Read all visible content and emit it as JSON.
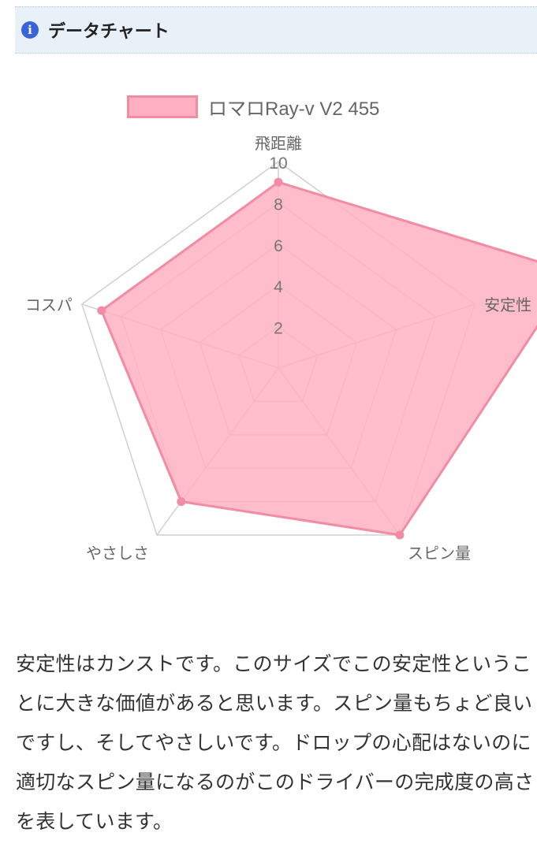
{
  "header": {
    "icon": "info-icon",
    "title": "データチャート"
  },
  "chart_data": {
    "type": "radar",
    "legend_position": "top",
    "categories": [
      "飛距離",
      "安定性",
      "スピン量",
      "やさしさ",
      "コスパ"
    ],
    "series": [
      {
        "name": "ロマロRay-v V2 455",
        "values": [
          9,
          15,
          10,
          8,
          9
        ],
        "color": "#f28ba3",
        "fill": "#ffb0c1"
      }
    ],
    "ticks": [
      "2",
      "4",
      "6",
      "8",
      "10"
    ],
    "range": [
      0,
      10
    ],
    "grid": true
  },
  "body_text": "安定性はカンストです。このサイズでこの安定性ということに大きな価値があると思います。スピン量もちょど良いですし、そしてやさしいです。ドロップの心配はないのに適切なスピン量になるのがこのドライバーの完成度の高さを表しています。"
}
